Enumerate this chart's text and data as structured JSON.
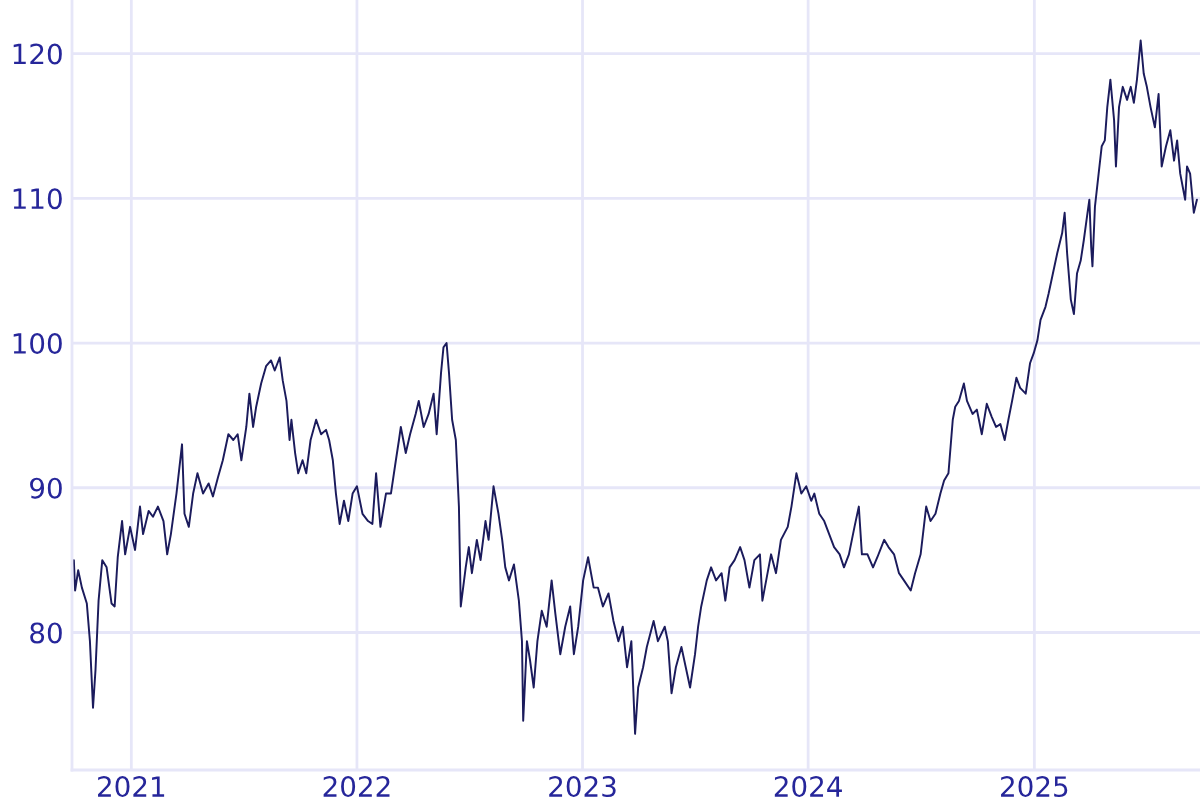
{
  "chart_data": {
    "type": "line",
    "x": [
      "2020-09-30",
      "2020-10-02",
      "2020-10-07",
      "2020-10-13",
      "2020-10-21",
      "2020-10-26",
      "2020-10-31",
      "2020-11-04",
      "2020-11-09",
      "2020-11-15",
      "2020-11-22",
      "2020-11-30",
      "2020-12-05",
      "2020-12-10",
      "2020-12-17",
      "2020-12-22",
      "2020-12-30",
      "2021-01-07",
      "2021-01-15",
      "2021-01-20",
      "2021-01-29",
      "2021-02-05",
      "2021-02-13",
      "2021-02-22",
      "2021-02-28",
      "2021-03-06",
      "2021-03-15",
      "2021-03-24",
      "2021-03-28",
      "2021-04-04",
      "2021-04-11",
      "2021-04-18",
      "2021-04-27",
      "2021-05-06",
      "2021-05-13",
      "2021-05-21",
      "2021-05-29",
      "2021-06-07",
      "2021-06-15",
      "2021-06-22",
      "2021-06-28",
      "2021-07-06",
      "2021-07-11",
      "2021-07-17",
      "2021-07-22",
      "2021-07-30",
      "2021-08-07",
      "2021-08-15",
      "2021-08-21",
      "2021-08-29",
      "2021-09-03",
      "2021-09-09",
      "2021-09-14",
      "2021-09-17",
      "2021-09-23",
      "2021-09-28",
      "2021-10-05",
      "2021-10-11",
      "2021-10-18",
      "2021-10-27",
      "2021-11-04",
      "2021-11-12",
      "2021-11-17",
      "2021-11-23",
      "2021-11-28",
      "2021-12-04",
      "2021-12-11",
      "2021-12-18",
      "2021-12-25",
      "2022-01-01",
      "2022-01-10",
      "2022-01-19",
      "2022-01-26",
      "2022-02-01",
      "2022-02-08",
      "2022-02-17",
      "2022-02-25",
      "2022-03-05",
      "2022-03-10",
      "2022-03-13",
      "2022-03-21",
      "2022-03-28",
      "2022-04-06",
      "2022-04-11",
      "2022-04-19",
      "2022-04-27",
      "2022-05-05",
      "2022-05-10",
      "2022-05-17",
      "2022-05-21",
      "2022-05-26",
      "2022-05-30",
      "2022-06-04",
      "2022-06-10",
      "2022-06-15",
      "2022-06-18",
      "2022-06-26",
      "2022-07-01",
      "2022-07-06",
      "2022-07-14",
      "2022-07-20",
      "2022-07-28",
      "2022-08-02",
      "2022-08-10",
      "2022-08-18",
      "2022-08-24",
      "2022-08-29",
      "2022-09-04",
      "2022-09-12",
      "2022-09-20",
      "2022-09-25",
      "2022-09-27",
      "2022-10-03",
      "2022-10-08",
      "2022-10-14",
      "2022-10-20",
      "2022-10-27",
      "2022-11-04",
      "2022-11-12",
      "2022-11-18",
      "2022-11-26",
      "2022-12-04",
      "2022-12-12",
      "2022-12-18",
      "2022-12-25",
      "2023-01-02",
      "2023-01-10",
      "2023-01-19",
      "2023-01-26",
      "2023-02-03",
      "2023-02-12",
      "2023-02-20",
      "2023-02-28",
      "2023-03-07",
      "2023-03-14",
      "2023-03-21",
      "2023-03-27",
      "2023-04-01",
      "2023-04-09",
      "2023-04-15",
      "2023-04-26",
      "2023-05-03",
      "2023-05-14",
      "2023-05-19",
      "2023-05-25",
      "2023-06-01",
      "2023-06-10",
      "2023-06-17",
      "2023-06-24",
      "2023-07-02",
      "2023-07-07",
      "2023-07-12",
      "2023-07-21",
      "2023-07-28",
      "2023-08-05",
      "2023-08-14",
      "2023-08-20",
      "2023-08-27",
      "2023-09-04",
      "2023-09-13",
      "2023-09-20",
      "2023-09-28",
      "2023-10-06",
      "2023-10-15",
      "2023-10-19",
      "2023-11-02",
      "2023-11-10",
      "2023-11-18",
      "2023-11-29",
      "2023-12-05",
      "2023-12-13",
      "2023-12-21",
      "2023-12-29",
      "2024-01-06",
      "2024-01-11",
      "2024-01-19",
      "2024-01-27",
      "2024-02-04",
      "2024-02-12",
      "2024-02-21",
      "2024-02-28",
      "2024-03-07",
      "2024-03-16",
      "2024-03-23",
      "2024-03-28",
      "2024-04-06",
      "2024-04-15",
      "2024-04-22",
      "2024-05-03",
      "2024-05-10",
      "2024-05-19",
      "2024-05-27",
      "2024-06-04",
      "2024-06-15",
      "2024-06-22",
      "2024-07-01",
      "2024-07-10",
      "2024-07-17",
      "2024-07-25",
      "2024-08-02",
      "2024-08-08",
      "2024-08-15",
      "2024-08-22",
      "2024-08-26",
      "2024-09-01",
      "2024-09-09",
      "2024-09-14",
      "2024-09-23",
      "2024-09-30",
      "2024-10-08",
      "2024-10-16",
      "2024-10-24",
      "2024-10-31",
      "2024-11-07",
      "2024-11-14",
      "2024-11-20",
      "2024-11-26",
      "2024-12-03",
      "2024-12-09",
      "2024-12-18",
      "2024-12-25",
      "2024-12-31",
      "2025-01-06",
      "2025-01-11",
      "2025-01-19",
      "2025-01-24",
      "2025-01-31",
      "2025-02-07",
      "2025-02-15",
      "2025-02-19",
      "2025-02-23",
      "2025-03-01",
      "2025-03-06",
      "2025-03-11",
      "2025-03-17",
      "2025-03-22",
      "2025-03-28",
      "2025-03-31",
      "2025-04-03",
      "2025-04-05",
      "2025-04-09",
      "2025-04-15",
      "2025-04-20",
      "2025-04-25",
      "2025-04-29",
      "2025-05-04",
      "2025-05-10",
      "2025-05-13",
      "2025-05-18",
      "2025-05-24",
      "2025-05-31",
      "2025-06-06",
      "2025-06-11",
      "2025-06-16",
      "2025-06-22",
      "2025-06-27",
      "2025-07-02",
      "2025-07-08",
      "2025-07-15",
      "2025-07-21",
      "2025-07-26",
      "2025-08-02",
      "2025-08-09",
      "2025-08-15",
      "2025-08-20",
      "2025-08-25",
      "2025-09-02",
      "2025-09-05",
      "2025-09-10",
      "2025-09-16",
      "2025-09-21"
    ],
    "series": [
      {
        "color": "#1b1b5c",
        "values": [
          85.0,
          82.9,
          84.3,
          83.1,
          82.0,
          79.4,
          74.8,
          77.4,
          82.2,
          85.0,
          84.5,
          82.0,
          81.8,
          85.2,
          87.7,
          85.4,
          87.3,
          85.7,
          88.7,
          86.8,
          88.4,
          88.0,
          88.7,
          87.7,
          85.4,
          86.8,
          89.6,
          93.0,
          88.2,
          87.3,
          89.6,
          91.0,
          89.6,
          90.3,
          89.4,
          90.7,
          91.9,
          93.7,
          93.3,
          93.7,
          91.9,
          94.2,
          96.5,
          94.2,
          95.6,
          97.2,
          98.4,
          98.8,
          98.1,
          99.0,
          97.4,
          96.0,
          93.3,
          94.7,
          92.4,
          91.0,
          91.9,
          91.0,
          93.3,
          94.7,
          93.7,
          94.0,
          93.3,
          91.9,
          89.6,
          87.5,
          89.1,
          87.7,
          89.6,
          90.1,
          88.2,
          87.7,
          87.5,
          91.0,
          87.3,
          89.6,
          89.6,
          91.9,
          93.3,
          94.2,
          92.4,
          93.7,
          95.1,
          96.0,
          94.2,
          95.1,
          96.5,
          93.7,
          97.9,
          99.7,
          100.0,
          97.9,
          94.7,
          93.3,
          88.7,
          81.8,
          84.5,
          85.9,
          84.1,
          86.4,
          85.0,
          87.7,
          86.4,
          90.1,
          88.2,
          86.4,
          84.5,
          83.6,
          84.7,
          82.2,
          79.4,
          73.9,
          79.4,
          78.1,
          76.2,
          79.4,
          81.5,
          80.4,
          83.6,
          81.3,
          78.5,
          80.4,
          81.8,
          78.5,
          80.4,
          83.6,
          85.2,
          83.1,
          83.1,
          81.8,
          82.7,
          80.8,
          79.4,
          80.4,
          77.6,
          79.4,
          73.0,
          76.2,
          77.6,
          79.0,
          80.8,
          79.4,
          80.4,
          79.4,
          75.8,
          77.6,
          79.0,
          77.6,
          76.2,
          78.5,
          80.4,
          81.8,
          83.6,
          84.5,
          83.6,
          84.1,
          82.2,
          84.5,
          85.0,
          85.9,
          85.0,
          83.1,
          85.0,
          85.4,
          82.2,
          85.4,
          84.1,
          86.4,
          87.3,
          88.7,
          91.0,
          89.6,
          90.1,
          89.1,
          89.6,
          88.2,
          87.7,
          86.8,
          85.9,
          85.4,
          84.5,
          85.4,
          87.3,
          88.7,
          85.4,
          85.4,
          84.5,
          85.2,
          86.4,
          85.9,
          85.4,
          84.1,
          83.6,
          82.9,
          84.1,
          85.4,
          88.7,
          87.7,
          88.2,
          89.6,
          90.5,
          91.0,
          94.7,
          95.6,
          96.0,
          97.2,
          96.0,
          95.1,
          95.4,
          93.7,
          95.8,
          94.9,
          94.2,
          94.4,
          93.3,
          94.7,
          96.0,
          97.6,
          96.9,
          96.5,
          98.6,
          99.3,
          100.2,
          101.6,
          102.5,
          103.4,
          104.8,
          106.2,
          107.6,
          109.0,
          106.2,
          103.0,
          102.0,
          104.8,
          105.7,
          107.1,
          109.0,
          109.9,
          106.6,
          105.3,
          109.4,
          111.7,
          113.6,
          114.0,
          116.3,
          118.2,
          115.4,
          112.2,
          116.3,
          117.7,
          116.8,
          117.7,
          116.6,
          118.2,
          120.9,
          118.6,
          117.7,
          116.3,
          114.9,
          117.2,
          112.2,
          113.6,
          114.7,
          112.6,
          114.0,
          111.7,
          109.9,
          112.2,
          111.7,
          109.0,
          109.9
        ]
      }
    ],
    "xlim": [
      "2020-09-27",
      "2025-09-26"
    ],
    "xticks": [
      {
        "value": "2021-01-01",
        "label": "2021"
      },
      {
        "value": "2022-01-01",
        "label": "2022"
      },
      {
        "value": "2023-01-01",
        "label": "2023"
      },
      {
        "value": "2024-01-01",
        "label": "2024"
      },
      {
        "value": "2025-01-01",
        "label": "2025"
      }
    ],
    "ylim": [
      70.5,
      123.7
    ],
    "yticks": [
      80,
      90,
      100,
      110,
      120
    ],
    "grid": true
  }
}
